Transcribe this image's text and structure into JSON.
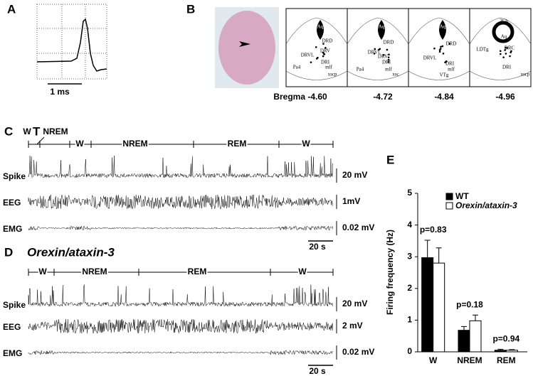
{
  "panel_a": {
    "label": "A",
    "scale": "1 ms"
  },
  "panel_b": {
    "label": "B",
    "sections": [
      {
        "bregma": "Bregma -4.60",
        "labels": [
          "Aq",
          "DRD",
          "DRVL",
          "DRV",
          "DRI",
          "Pa4",
          "mlf",
          "xscp"
        ]
      },
      {
        "bregma": "-4.72",
        "labels": [
          "Aq",
          "DRD",
          "DRVL",
          "DRV",
          "DRI",
          "Pa4",
          "mlf",
          "xsc"
        ]
      },
      {
        "bregma": "-4.84",
        "labels": [
          "Aq",
          "DRD",
          "DRVL",
          "DRI",
          "mlf",
          "VTg"
        ]
      },
      {
        "bregma": "-4.96",
        "labels": [
          "2Cb",
          "Aq",
          "LDTg",
          "DRC",
          "DRI",
          "xscp"
        ]
      }
    ]
  },
  "panel_c": {
    "label": "C",
    "genotype": "WT",
    "states": [
      "W",
      "NREM",
      "W",
      "NREM",
      "REM",
      "W"
    ],
    "traces": [
      "Spike",
      "EEG",
      "EMG"
    ],
    "scales": [
      "20 mV",
      "1mV",
      "0.02 mV"
    ],
    "time_scale": "20 s"
  },
  "panel_d": {
    "label": "D",
    "genotype": "Orexin/ataxin-3",
    "states": [
      "W",
      "NREM",
      "REM",
      "W"
    ],
    "traces": [
      "Spike",
      "EEG",
      "EMG"
    ],
    "scales": [
      "20 mV",
      "2 mV",
      "0.02 mV"
    ],
    "time_scale": "20 s"
  },
  "chart_data": {
    "type": "bar",
    "panel_label": "E",
    "ylabel": "Firing frequency (Hz)",
    "categories": [
      "W",
      "NREM",
      "REM"
    ],
    "series": [
      {
        "name": "WT",
        "color": "#000000",
        "values": [
          2.97,
          0.68,
          0.05
        ],
        "errors": [
          0.55,
          0.12,
          0.03
        ]
      },
      {
        "name": "Orexin/ataxin-3",
        "color": "#ffffff",
        "values": [
          2.8,
          0.98,
          0.05
        ],
        "errors": [
          0.48,
          0.18,
          0.02
        ]
      }
    ],
    "annotations": [
      "p=0.83",
      "p=0.18",
      "p=0.94"
    ],
    "ylim": [
      0,
      5
    ],
    "yticks": [
      0,
      1,
      2,
      3,
      4,
      5
    ]
  }
}
